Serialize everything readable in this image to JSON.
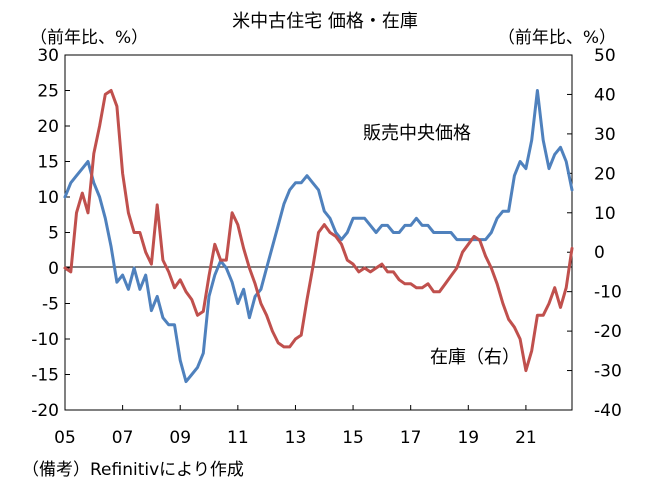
{
  "chart_data": {
    "type": "line",
    "title": "米中古住宅 価格・在庫",
    "left_unit": "（前年比、%）",
    "right_unit": "（前年比、%）",
    "note": "（備考）Refinitivにより作成",
    "x_tick_labels": [
      "05",
      "07",
      "09",
      "11",
      "13",
      "15",
      "17",
      "19",
      "21"
    ],
    "x_range": [
      2005.0,
      2022.6
    ],
    "y_left": {
      "range": [
        -20,
        30
      ],
      "ticks": [
        30,
        25,
        20,
        15,
        10,
        5,
        0,
        -5,
        -10,
        -15,
        -20
      ]
    },
    "y_right": {
      "range": [
        -40,
        50
      ],
      "ticks": [
        50,
        40,
        30,
        20,
        10,
        0,
        -10,
        -20,
        -30,
        -40
      ]
    },
    "zero_line": true,
    "grid": false,
    "series": [
      {
        "name": "販売中央価格",
        "axis": "left",
        "color": "#4F81BD",
        "points": [
          [
            2005.0,
            10
          ],
          [
            2005.2,
            12
          ],
          [
            2005.4,
            13
          ],
          [
            2005.6,
            14
          ],
          [
            2005.8,
            15
          ],
          [
            2006.0,
            12
          ],
          [
            2006.2,
            10
          ],
          [
            2006.4,
            7
          ],
          [
            2006.6,
            3
          ],
          [
            2006.8,
            -2
          ],
          [
            2007.0,
            -1
          ],
          [
            2007.2,
            -3
          ],
          [
            2007.4,
            0
          ],
          [
            2007.6,
            -3
          ],
          [
            2007.8,
            -1
          ],
          [
            2008.0,
            -6
          ],
          [
            2008.2,
            -4
          ],
          [
            2008.4,
            -7
          ],
          [
            2008.6,
            -8
          ],
          [
            2008.8,
            -8
          ],
          [
            2009.0,
            -13
          ],
          [
            2009.2,
            -16
          ],
          [
            2009.4,
            -15
          ],
          [
            2009.6,
            -14
          ],
          [
            2009.8,
            -12
          ],
          [
            2010.0,
            -4
          ],
          [
            2010.2,
            -1
          ],
          [
            2010.4,
            1
          ],
          [
            2010.6,
            0
          ],
          [
            2010.8,
            -2
          ],
          [
            2011.0,
            -5
          ],
          [
            2011.2,
            -3
          ],
          [
            2011.4,
            -7
          ],
          [
            2011.6,
            -4
          ],
          [
            2011.8,
            -3
          ],
          [
            2012.0,
            0
          ],
          [
            2012.2,
            3
          ],
          [
            2012.4,
            6
          ],
          [
            2012.6,
            9
          ],
          [
            2012.8,
            11
          ],
          [
            2013.0,
            12
          ],
          [
            2013.2,
            12
          ],
          [
            2013.4,
            13
          ],
          [
            2013.6,
            12
          ],
          [
            2013.8,
            11
          ],
          [
            2014.0,
            8
          ],
          [
            2014.2,
            7
          ],
          [
            2014.4,
            5
          ],
          [
            2014.6,
            4
          ],
          [
            2014.8,
            5
          ],
          [
            2015.0,
            7
          ],
          [
            2015.2,
            7
          ],
          [
            2015.4,
            7
          ],
          [
            2015.6,
            6
          ],
          [
            2015.8,
            5
          ],
          [
            2016.0,
            6
          ],
          [
            2016.2,
            6
          ],
          [
            2016.4,
            5
          ],
          [
            2016.6,
            5
          ],
          [
            2016.8,
            6
          ],
          [
            2017.0,
            6
          ],
          [
            2017.2,
            7
          ],
          [
            2017.4,
            6
          ],
          [
            2017.6,
            6
          ],
          [
            2017.8,
            5
          ],
          [
            2018.0,
            5
          ],
          [
            2018.2,
            5
          ],
          [
            2018.4,
            5
          ],
          [
            2018.6,
            4
          ],
          [
            2018.8,
            4
          ],
          [
            2019.0,
            4
          ],
          [
            2019.2,
            4
          ],
          [
            2019.4,
            4
          ],
          [
            2019.6,
            4
          ],
          [
            2019.8,
            5
          ],
          [
            2020.0,
            7
          ],
          [
            2020.2,
            8
          ],
          [
            2020.4,
            8
          ],
          [
            2020.6,
            13
          ],
          [
            2020.8,
            15
          ],
          [
            2021.0,
            14
          ],
          [
            2021.2,
            18
          ],
          [
            2021.4,
            25
          ],
          [
            2021.6,
            18
          ],
          [
            2021.8,
            14
          ],
          [
            2022.0,
            16
          ],
          [
            2022.2,
            17
          ],
          [
            2022.4,
            15
          ],
          [
            2022.6,
            11
          ]
        ]
      },
      {
        "name": "在庫（右）",
        "axis": "right",
        "color": "#C0504D",
        "points": [
          [
            2005.0,
            -4
          ],
          [
            2005.2,
            -5
          ],
          [
            2005.4,
            10
          ],
          [
            2005.6,
            15
          ],
          [
            2005.8,
            10
          ],
          [
            2006.0,
            25
          ],
          [
            2006.2,
            32
          ],
          [
            2006.4,
            40
          ],
          [
            2006.6,
            41
          ],
          [
            2006.8,
            37
          ],
          [
            2007.0,
            20
          ],
          [
            2007.2,
            10
          ],
          [
            2007.4,
            5
          ],
          [
            2007.6,
            5
          ],
          [
            2007.8,
            0
          ],
          [
            2008.0,
            -3
          ],
          [
            2008.2,
            12
          ],
          [
            2008.4,
            -2
          ],
          [
            2008.6,
            -5
          ],
          [
            2008.8,
            -9
          ],
          [
            2009.0,
            -7
          ],
          [
            2009.2,
            -10
          ],
          [
            2009.4,
            -12
          ],
          [
            2009.6,
            -16
          ],
          [
            2009.8,
            -15
          ],
          [
            2010.0,
            -6
          ],
          [
            2010.2,
            2
          ],
          [
            2010.4,
            -2
          ],
          [
            2010.6,
            -2
          ],
          [
            2010.8,
            10
          ],
          [
            2011.0,
            7
          ],
          [
            2011.2,
            1
          ],
          [
            2011.4,
            -4
          ],
          [
            2011.6,
            -8
          ],
          [
            2011.8,
            -13
          ],
          [
            2012.0,
            -16
          ],
          [
            2012.2,
            -20
          ],
          [
            2012.4,
            -23
          ],
          [
            2012.6,
            -24
          ],
          [
            2012.8,
            -24
          ],
          [
            2013.0,
            -22
          ],
          [
            2013.2,
            -21
          ],
          [
            2013.4,
            -12
          ],
          [
            2013.6,
            -4
          ],
          [
            2013.8,
            5
          ],
          [
            2014.0,
            7
          ],
          [
            2014.2,
            5
          ],
          [
            2014.4,
            4
          ],
          [
            2014.6,
            2
          ],
          [
            2014.8,
            -2
          ],
          [
            2015.0,
            -3
          ],
          [
            2015.2,
            -5
          ],
          [
            2015.4,
            -4
          ],
          [
            2015.6,
            -5
          ],
          [
            2015.8,
            -4
          ],
          [
            2016.0,
            -3
          ],
          [
            2016.2,
            -5
          ],
          [
            2016.4,
            -5
          ],
          [
            2016.6,
            -7
          ],
          [
            2016.8,
            -8
          ],
          [
            2017.0,
            -8
          ],
          [
            2017.2,
            -9
          ],
          [
            2017.4,
            -9
          ],
          [
            2017.6,
            -8
          ],
          [
            2017.8,
            -10
          ],
          [
            2018.0,
            -10
          ],
          [
            2018.2,
            -8
          ],
          [
            2018.4,
            -6
          ],
          [
            2018.6,
            -4
          ],
          [
            2018.8,
            0
          ],
          [
            2019.0,
            2
          ],
          [
            2019.2,
            4
          ],
          [
            2019.4,
            3
          ],
          [
            2019.6,
            -1
          ],
          [
            2019.8,
            -4
          ],
          [
            2020.0,
            -8
          ],
          [
            2020.2,
            -13
          ],
          [
            2020.4,
            -17
          ],
          [
            2020.6,
            -19
          ],
          [
            2020.8,
            -22
          ],
          [
            2021.0,
            -30
          ],
          [
            2021.2,
            -25
          ],
          [
            2021.4,
            -16
          ],
          [
            2021.6,
            -16
          ],
          [
            2021.8,
            -13
          ],
          [
            2022.0,
            -9
          ],
          [
            2022.2,
            -14
          ],
          [
            2022.4,
            -9
          ],
          [
            2022.6,
            1
          ]
        ]
      }
    ]
  }
}
